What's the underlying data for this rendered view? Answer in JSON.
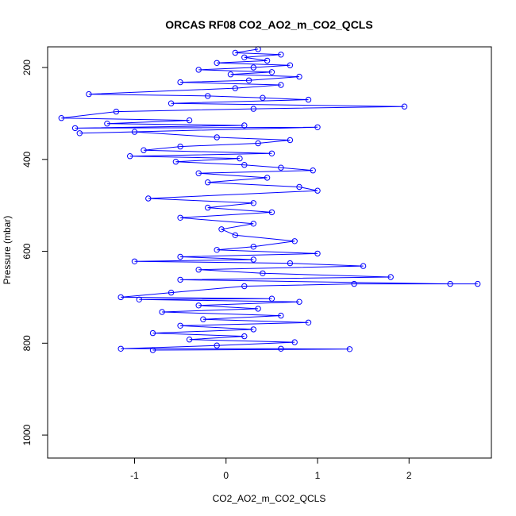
{
  "chart_data": {
    "type": "scatter",
    "title": "ORCAS RF08 CO2_AO2_m_CO2_QCLS",
    "xlabel": "CO2_AO2_m_CO2_QCLS",
    "ylabel": "Pressure (mbar)",
    "xlim": [
      -1.95,
      2.9
    ],
    "ylim": [
      1050,
      155
    ],
    "y_inverted": true,
    "xticks": [
      -1,
      0,
      1,
      2
    ],
    "yticks": [
      200,
      400,
      600,
      800,
      1000
    ],
    "grid": false,
    "legend": "none",
    "marker": "open-circle",
    "connected": true,
    "color": "#0000ff",
    "series": [
      {
        "points": [
          [
            0.35,
            160
          ],
          [
            0.1,
            168
          ],
          [
            0.6,
            172
          ],
          [
            0.2,
            178
          ],
          [
            0.45,
            185
          ],
          [
            -0.1,
            190
          ],
          [
            0.7,
            195
          ],
          [
            0.3,
            200
          ],
          [
            -0.3,
            205
          ],
          [
            0.5,
            210
          ],
          [
            0.05,
            215
          ],
          [
            0.8,
            220
          ],
          [
            0.25,
            228
          ],
          [
            -0.5,
            232
          ],
          [
            0.6,
            238
          ],
          [
            0.1,
            245
          ],
          [
            -1.5,
            258
          ],
          [
            -0.2,
            262
          ],
          [
            0.4,
            266
          ],
          [
            0.9,
            270
          ],
          [
            -0.6,
            278
          ],
          [
            1.95,
            285
          ],
          [
            0.3,
            290
          ],
          [
            -1.2,
            296
          ],
          [
            -1.8,
            310
          ],
          [
            -0.4,
            315
          ],
          [
            -1.3,
            322
          ],
          [
            0.2,
            326
          ],
          [
            -1.65,
            332
          ],
          [
            1.0,
            330
          ],
          [
            -1.6,
            343
          ],
          [
            -1.0,
            340
          ],
          [
            -0.1,
            352
          ],
          [
            0.7,
            358
          ],
          [
            0.35,
            365
          ],
          [
            -0.5,
            372
          ],
          [
            -0.9,
            380
          ],
          [
            0.5,
            387
          ],
          [
            -1.05,
            393
          ],
          [
            0.15,
            398
          ],
          [
            -0.55,
            405
          ],
          [
            0.2,
            412
          ],
          [
            0.6,
            418
          ],
          [
            0.95,
            424
          ],
          [
            -0.3,
            430
          ],
          [
            0.45,
            440
          ],
          [
            -0.2,
            450
          ],
          [
            0.8,
            460
          ],
          [
            1.0,
            468
          ],
          [
            -0.85,
            485
          ],
          [
            0.3,
            495
          ],
          [
            -0.2,
            505
          ],
          [
            0.5,
            515
          ],
          [
            -0.5,
            527
          ],
          [
            0.3,
            540
          ],
          [
            -0.05,
            552
          ],
          [
            0.1,
            565
          ],
          [
            0.75,
            578
          ],
          [
            0.3,
            590
          ],
          [
            -0.1,
            597
          ],
          [
            1.0,
            605
          ],
          [
            -0.5,
            612
          ],
          [
            0.3,
            618
          ],
          [
            -1.0,
            622
          ],
          [
            0.7,
            626
          ],
          [
            1.5,
            632
          ],
          [
            -0.3,
            640
          ],
          [
            0.4,
            648
          ],
          [
            1.8,
            656
          ],
          [
            -0.5,
            662
          ],
          [
            2.45,
            671
          ],
          [
            2.75,
            671
          ],
          [
            1.4,
            671
          ],
          [
            0.2,
            676
          ],
          [
            -0.6,
            690
          ],
          [
            -1.15,
            700
          ],
          [
            0.5,
            703
          ],
          [
            -0.95,
            705
          ],
          [
            0.8,
            710
          ],
          [
            -0.3,
            718
          ],
          [
            0.35,
            725
          ],
          [
            -0.7,
            732
          ],
          [
            0.6,
            740
          ],
          [
            -0.25,
            748
          ],
          [
            0.9,
            755
          ],
          [
            -0.5,
            762
          ],
          [
            0.3,
            770
          ],
          [
            -0.8,
            778
          ],
          [
            0.2,
            785
          ],
          [
            -0.4,
            792
          ],
          [
            0.75,
            798
          ],
          [
            -0.1,
            805
          ],
          [
            -1.15,
            812
          ],
          [
            0.6,
            812
          ],
          [
            1.35,
            813
          ],
          [
            -0.8,
            815
          ]
        ]
      }
    ]
  }
}
